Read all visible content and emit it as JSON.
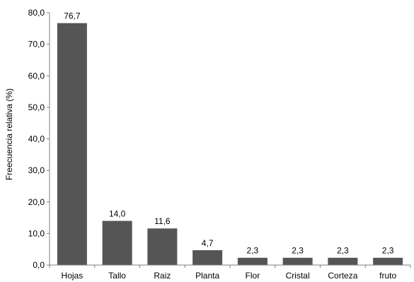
{
  "chart_data": {
    "type": "bar",
    "title": "",
    "xlabel": "",
    "ylabel": "Freecuencia relativa (%)",
    "categories": [
      "Hojas",
      "Tallo",
      "Raiz",
      "Planta",
      "Flor",
      "Cristal",
      "Corteza",
      "fruto"
    ],
    "values": [
      76.7,
      14.0,
      11.6,
      4.7,
      2.3,
      2.3,
      2.3,
      2.3
    ],
    "data_labels": [
      "76,7",
      "14,0",
      "11,6",
      "4,7",
      "2,3",
      "2,3",
      "2,3",
      "2,3"
    ],
    "ylim": [
      0,
      80
    ],
    "yticks": [
      0,
      10,
      20,
      30,
      40,
      50,
      60,
      70,
      80
    ],
    "ytick_labels": [
      "0,0",
      "10,0",
      "20,0",
      "30,0",
      "40,0",
      "50,0",
      "60,0",
      "70,0",
      "80,0"
    ],
    "grid": false,
    "legend": "none",
    "bar_color": "#555555"
  }
}
